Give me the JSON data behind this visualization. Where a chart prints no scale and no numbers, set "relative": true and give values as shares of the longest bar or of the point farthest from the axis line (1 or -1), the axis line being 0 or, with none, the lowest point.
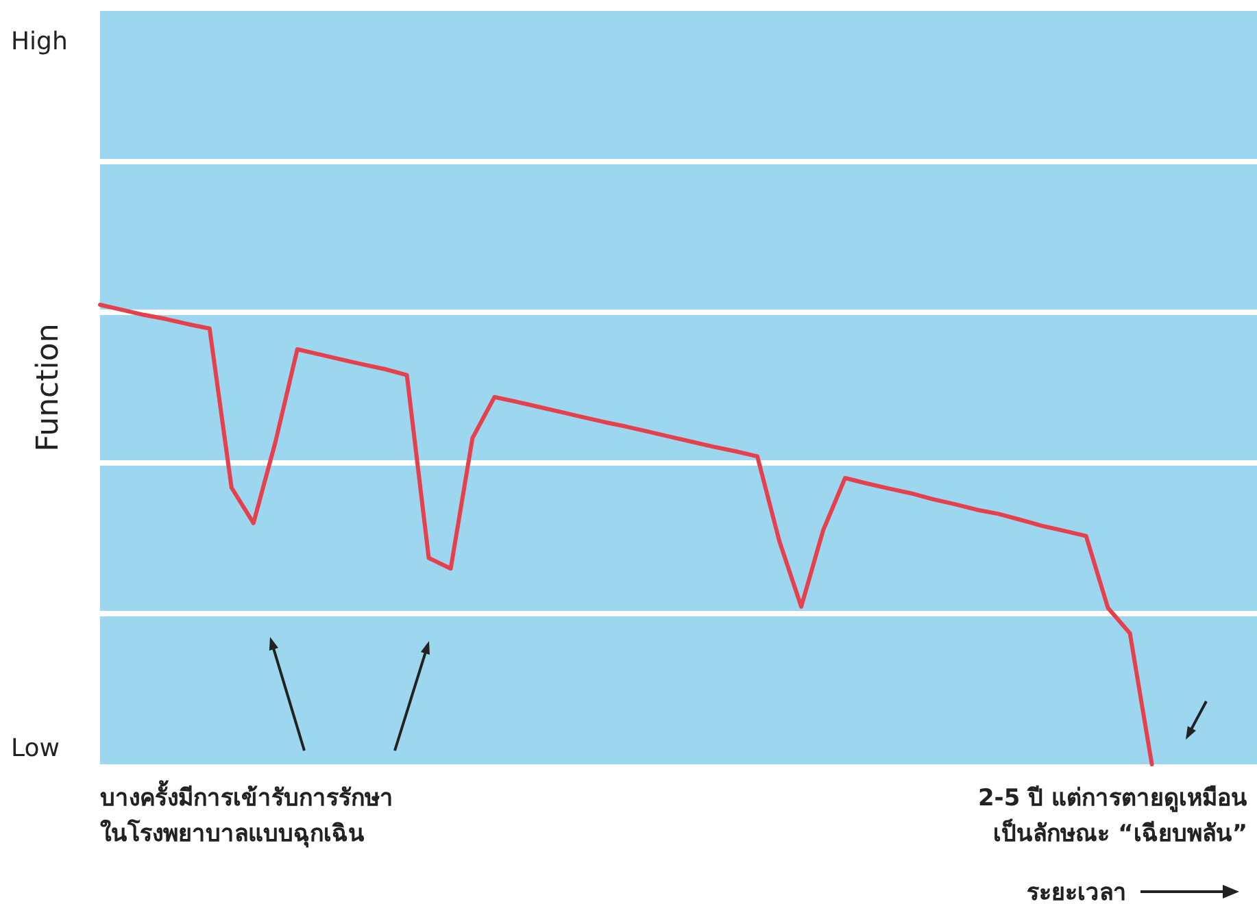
{
  "chart_data": {
    "type": "line",
    "ylabel": "Function",
    "xlabel": "ระยะเวลา",
    "relative": true,
    "categories": [
      null,
      null,
      null,
      null,
      null,
      null,
      null,
      null,
      null,
      null,
      null,
      null,
      null,
      null,
      null,
      null,
      null,
      null,
      null,
      null,
      null,
      null,
      null,
      null,
      null,
      null,
      null,
      null,
      null,
      null,
      null,
      null,
      null,
      null,
      null,
      null,
      null,
      null,
      null,
      null,
      null,
      null,
      null,
      null,
      null,
      null,
      null,
      null,
      null,
      null,
      null,
      null,
      null
    ],
    "series": [
      {
        "color": "#e5404c",
        "values": [
          1.0,
          0.989,
          0.978,
          0.969,
          0.958,
          0.948,
          0.602,
          0.525,
          0.701,
          0.903,
          0.892,
          0.881,
          0.87,
          0.86,
          0.847,
          0.449,
          0.426,
          0.71,
          0.799,
          0.789,
          0.778,
          0.767,
          0.756,
          0.745,
          0.735,
          0.724,
          0.713,
          0.702,
          0.691,
          0.681,
          0.67,
          0.486,
          0.343,
          0.509,
          0.623,
          0.611,
          0.6,
          0.59,
          0.577,
          0.566,
          0.554,
          0.545,
          0.532,
          0.519,
          0.508,
          0.497,
          0.34,
          0.285,
          0,
          null,
          null,
          null,
          null
        ]
      }
    ],
    "grid": "y",
    "marker": "none",
    "line_style": "solid",
    "annotations": [
      "High",
      "Low",
      "บางครั้งมีการเข้ารับการรักษา\nในโรงพยาบาลแบบฉุกเฉิน",
      "2-5 ปี แต่การตายดูเหมือน\nเป็นลักษณะ “เฉียบพลัน”"
    ]
  }
}
